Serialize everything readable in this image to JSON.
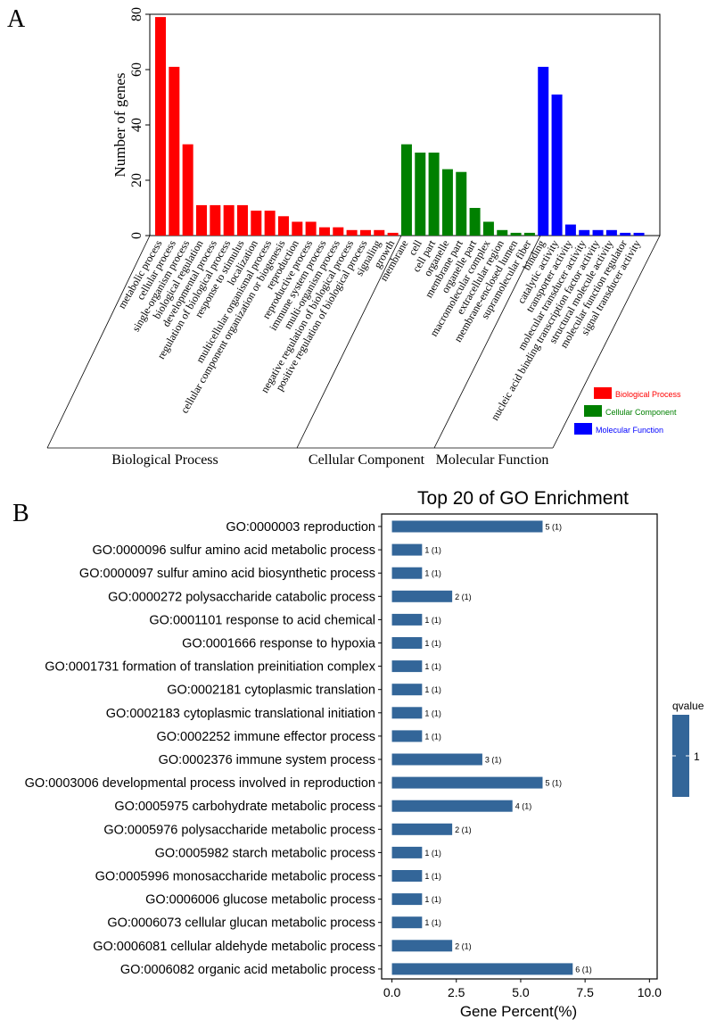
{
  "panels": {
    "a_label": "A",
    "b_label": "B"
  },
  "chart_data": [
    {
      "type": "bar",
      "panel": "A",
      "title": "",
      "xlabel": "",
      "ylabel": "Number of genes",
      "ylim": [
        0,
        80
      ],
      "yticks": [
        0,
        20,
        40,
        60,
        80
      ],
      "grid": false,
      "legend_position": "right",
      "groups": [
        {
          "name": "Biological Process",
          "color": "#ff0000",
          "categories": [
            "metabolic process",
            "cellular process",
            "single-organism process",
            "biological regulation",
            "developmental process",
            "regulation of biological process",
            "response to stimulus",
            "localization",
            "multicellular organismal process",
            "cellular component organization or biogenesis",
            "reproduction",
            "reproductive process",
            "immune system process",
            "multi-organism process",
            "negative regulation of biological process",
            "positive regulation of biological process",
            "signaling",
            "growth"
          ],
          "values": [
            79,
            61,
            33,
            11,
            11,
            11,
            11,
            9,
            9,
            7,
            5,
            5,
            3,
            3,
            2,
            2,
            2,
            1
          ]
        },
        {
          "name": "Cellular Component",
          "color": "#008000",
          "categories": [
            "membrane",
            "cell",
            "cell part",
            "organelle",
            "membrane part",
            "organelle part",
            "macromolecular complex",
            "extracellular region",
            "membrane-enclosed lumen",
            "supramolecular fiber"
          ],
          "values": [
            33,
            30,
            30,
            24,
            23,
            10,
            5,
            2,
            1,
            1
          ]
        },
        {
          "name": "Molecular Function",
          "color": "#0000ff",
          "categories": [
            "binding",
            "catalytic activity",
            "transporter activity",
            "molecular transducer activity",
            "nucleic acid binding transcription factor activity",
            "structural molecule activity",
            "molecular function regulator",
            "signal transducer activity"
          ],
          "values": [
            61,
            51,
            4,
            2,
            2,
            2,
            1,
            1
          ]
        }
      ]
    },
    {
      "type": "bar",
      "orientation": "horizontal",
      "panel": "B",
      "title": "Top 20 of GO Enrichment",
      "xlabel": "Gene Percent(%)",
      "ylabel": "",
      "xlim": [
        -0.4,
        10.3
      ],
      "xticks": [
        "0.0",
        "2.5",
        "5.0",
        "7.5",
        "10.0"
      ],
      "xtick_values": [
        0,
        2.5,
        5,
        7.5,
        10
      ],
      "grid": false,
      "bar_color": "#336699",
      "legend": {
        "title": "qvalue",
        "value": "1"
      },
      "categories": [
        "GO:0000003 reproduction",
        "GO:0000096 sulfur amino acid metabolic process",
        "GO:0000097 sulfur amino acid biosynthetic process",
        "GO:0000272 polysaccharide catabolic process",
        "GO:0001101 response to acid chemical",
        "GO:0001666 response to hypoxia",
        "GO:0001731 formation of translation preinitiation complex",
        "GO:0002181 cytoplasmic translation",
        "GO:0002183 cytoplasmic translational initiation",
        "GO:0002252 immune effector process",
        "GO:0002376 immune system process",
        "GO:0003006 developmental process involved in reproduction",
        "GO:0005975 carbohydrate metabolic process",
        "GO:0005976 polysaccharide metabolic process",
        "GO:0005982 starch metabolic process",
        "GO:0005996 monosaccharide metabolic process",
        "GO:0006006 glucose metabolic process",
        "GO:0006073 cellular glucan metabolic process",
        "GO:0006081 cellular aldehyde metabolic process",
        "GO:0006082 organic acid metabolic process"
      ],
      "values": [
        5.85,
        1.17,
        1.17,
        2.34,
        1.17,
        1.17,
        1.17,
        1.17,
        1.17,
        1.17,
        3.51,
        5.85,
        4.68,
        2.34,
        1.17,
        1.17,
        1.17,
        1.17,
        2.34,
        7.02
      ],
      "labels": [
        "5 (1)",
        "1 (1)",
        "1 (1)",
        "2 (1)",
        "1 (1)",
        "1 (1)",
        "1 (1)",
        "1 (1)",
        "1 (1)",
        "1 (1)",
        "3 (1)",
        "5 (1)",
        "4 (1)",
        "2 (1)",
        "1 (1)",
        "1 (1)",
        "1 (1)",
        "1 (1)",
        "2 (1)",
        "6 (1)"
      ]
    }
  ]
}
